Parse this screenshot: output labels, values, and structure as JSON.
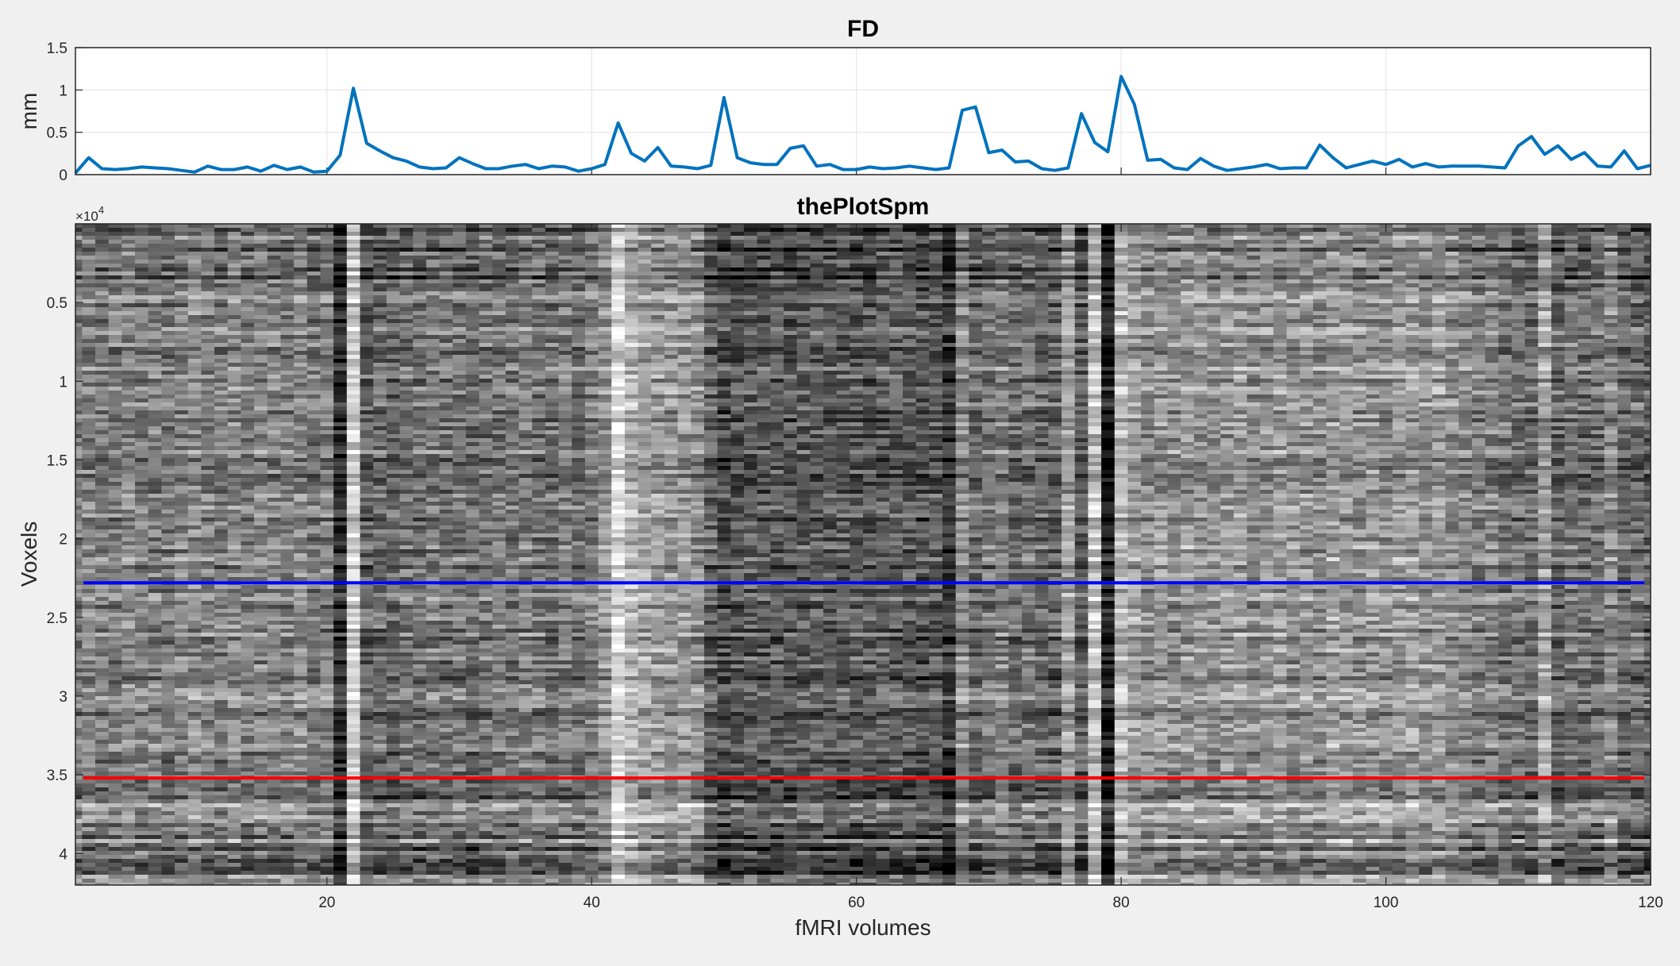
{
  "figure": {
    "background": "#f0f0f0"
  },
  "chart_data": [
    {
      "type": "line",
      "title": "FD",
      "xlabel": "",
      "ylabel": "mm",
      "xlim": [
        1,
        120
      ],
      "ylim": [
        0,
        1.5
      ],
      "yticks": [
        0,
        0.5,
        1,
        1.5
      ],
      "ytick_labels": [
        "0",
        "0.5",
        "1",
        "1.5"
      ],
      "xticks": [
        20,
        40,
        60,
        80,
        100,
        120
      ],
      "show_xtick_labels": false,
      "grid": true,
      "color": "#0072bd",
      "series": [
        {
          "x": [
            1,
            2,
            3,
            4,
            5,
            6,
            7,
            8,
            9,
            10,
            11,
            12,
            13,
            14,
            15,
            16,
            17,
            18,
            19,
            20,
            21,
            22,
            23,
            24,
            25,
            26,
            27,
            28,
            29,
            30,
            31,
            32,
            33,
            34,
            35,
            36,
            37,
            38,
            39,
            40,
            41,
            42,
            43,
            44,
            45,
            46,
            47,
            48,
            49,
            50,
            51,
            52,
            53,
            54,
            55,
            56,
            57,
            58,
            59,
            60,
            61,
            62,
            63,
            64,
            65,
            66,
            67,
            68,
            69,
            70,
            71,
            72,
            73,
            74,
            75,
            76,
            77,
            78,
            79,
            80,
            81,
            82,
            83,
            84,
            85,
            86,
            87,
            88,
            89,
            90,
            91,
            92,
            93,
            94,
            95,
            96,
            97,
            98,
            99,
            100,
            101,
            102,
            103,
            104,
            105,
            106,
            107,
            108,
            109,
            110,
            111,
            112,
            113,
            114,
            115,
            116,
            117,
            118,
            119,
            120
          ],
          "values": [
            0.02,
            0.2,
            0.07,
            0.06,
            0.07,
            0.09,
            0.08,
            0.07,
            0.05,
            0.03,
            0.1,
            0.06,
            0.06,
            0.09,
            0.04,
            0.11,
            0.06,
            0.09,
            0.03,
            0.04,
            0.23,
            1.02,
            0.37,
            0.28,
            0.2,
            0.16,
            0.09,
            0.07,
            0.08,
            0.2,
            0.13,
            0.07,
            0.07,
            0.1,
            0.12,
            0.07,
            0.1,
            0.09,
            0.04,
            0.07,
            0.12,
            0.61,
            0.25,
            0.16,
            0.32,
            0.1,
            0.09,
            0.07,
            0.11,
            0.91,
            0.2,
            0.14,
            0.12,
            0.12,
            0.31,
            0.34,
            0.1,
            0.12,
            0.06,
            0.06,
            0.09,
            0.07,
            0.08,
            0.1,
            0.08,
            0.06,
            0.08,
            0.76,
            0.8,
            0.26,
            0.29,
            0.15,
            0.16,
            0.07,
            0.05,
            0.08,
            0.72,
            0.38,
            0.27,
            1.16,
            0.83,
            0.17,
            0.18,
            0.08,
            0.06,
            0.19,
            0.1,
            0.05,
            0.07,
            0.09,
            0.12,
            0.07,
            0.08,
            0.08,
            0.35,
            0.2,
            0.08,
            0.12,
            0.16,
            0.12,
            0.18,
            0.09,
            0.13,
            0.09,
            0.1,
            0.1,
            0.1,
            0.09,
            0.08,
            0.34,
            0.45,
            0.24,
            0.34,
            0.18,
            0.26,
            0.1,
            0.09,
            0.28,
            0.07,
            0.11
          ]
        }
      ]
    },
    {
      "type": "heatmap",
      "title": "thePlotSpm",
      "xlabel": "fMRI volumes",
      "ylabel": "Voxels",
      "xlim": [
        1,
        120
      ],
      "ylim": [
        0,
        42000
      ],
      "y_reversed": true,
      "colormap": "gray",
      "exponent_label": "×10",
      "exponent_power": "4",
      "xticks": [
        20,
        40,
        60,
        80,
        100,
        120
      ],
      "xtick_labels": [
        "20",
        "40",
        "60",
        "80",
        "100",
        "120"
      ],
      "yticks": [
        5000,
        10000,
        15000,
        20000,
        25000,
        30000,
        35000,
        40000
      ],
      "ytick_labels": [
        "0.5",
        "1",
        "1.5",
        "2",
        "2.5",
        "3",
        "3.5",
        "4"
      ],
      "volume_brightness": [
        0.48,
        0.52,
        0.47,
        0.5,
        0.53,
        0.49,
        0.5,
        0.46,
        0.52,
        0.55,
        0.5,
        0.48,
        0.53,
        0.47,
        0.51,
        0.5,
        0.49,
        0.54,
        0.46,
        0.5,
        0.18,
        0.82,
        0.38,
        0.42,
        0.4,
        0.45,
        0.43,
        0.47,
        0.44,
        0.46,
        0.42,
        0.45,
        0.48,
        0.44,
        0.5,
        0.46,
        0.43,
        0.49,
        0.45,
        0.5,
        0.58,
        0.86,
        0.7,
        0.62,
        0.6,
        0.58,
        0.6,
        0.55,
        0.38,
        0.3,
        0.32,
        0.35,
        0.34,
        0.36,
        0.33,
        0.35,
        0.37,
        0.34,
        0.36,
        0.35,
        0.33,
        0.36,
        0.38,
        0.34,
        0.32,
        0.35,
        0.22,
        0.55,
        0.4,
        0.45,
        0.5,
        0.42,
        0.44,
        0.4,
        0.38,
        0.62,
        0.35,
        0.75,
        0.12,
        0.72,
        0.62,
        0.56,
        0.58,
        0.55,
        0.6,
        0.57,
        0.56,
        0.58,
        0.6,
        0.55,
        0.57,
        0.59,
        0.56,
        0.58,
        0.55,
        0.62,
        0.6,
        0.57,
        0.58,
        0.56,
        0.6,
        0.62,
        0.58,
        0.6,
        0.56,
        0.52,
        0.48,
        0.5,
        0.46,
        0.44,
        0.42,
        0.64,
        0.4,
        0.45,
        0.42,
        0.44,
        0.55,
        0.4,
        0.42,
        0.38
      ],
      "band_boundaries": [
        {
          "y": 22800,
          "color": "#0000ff",
          "name": ""
        },
        {
          "y": 35200,
          "color": "#ff0000",
          "name": ""
        }
      ]
    }
  ]
}
